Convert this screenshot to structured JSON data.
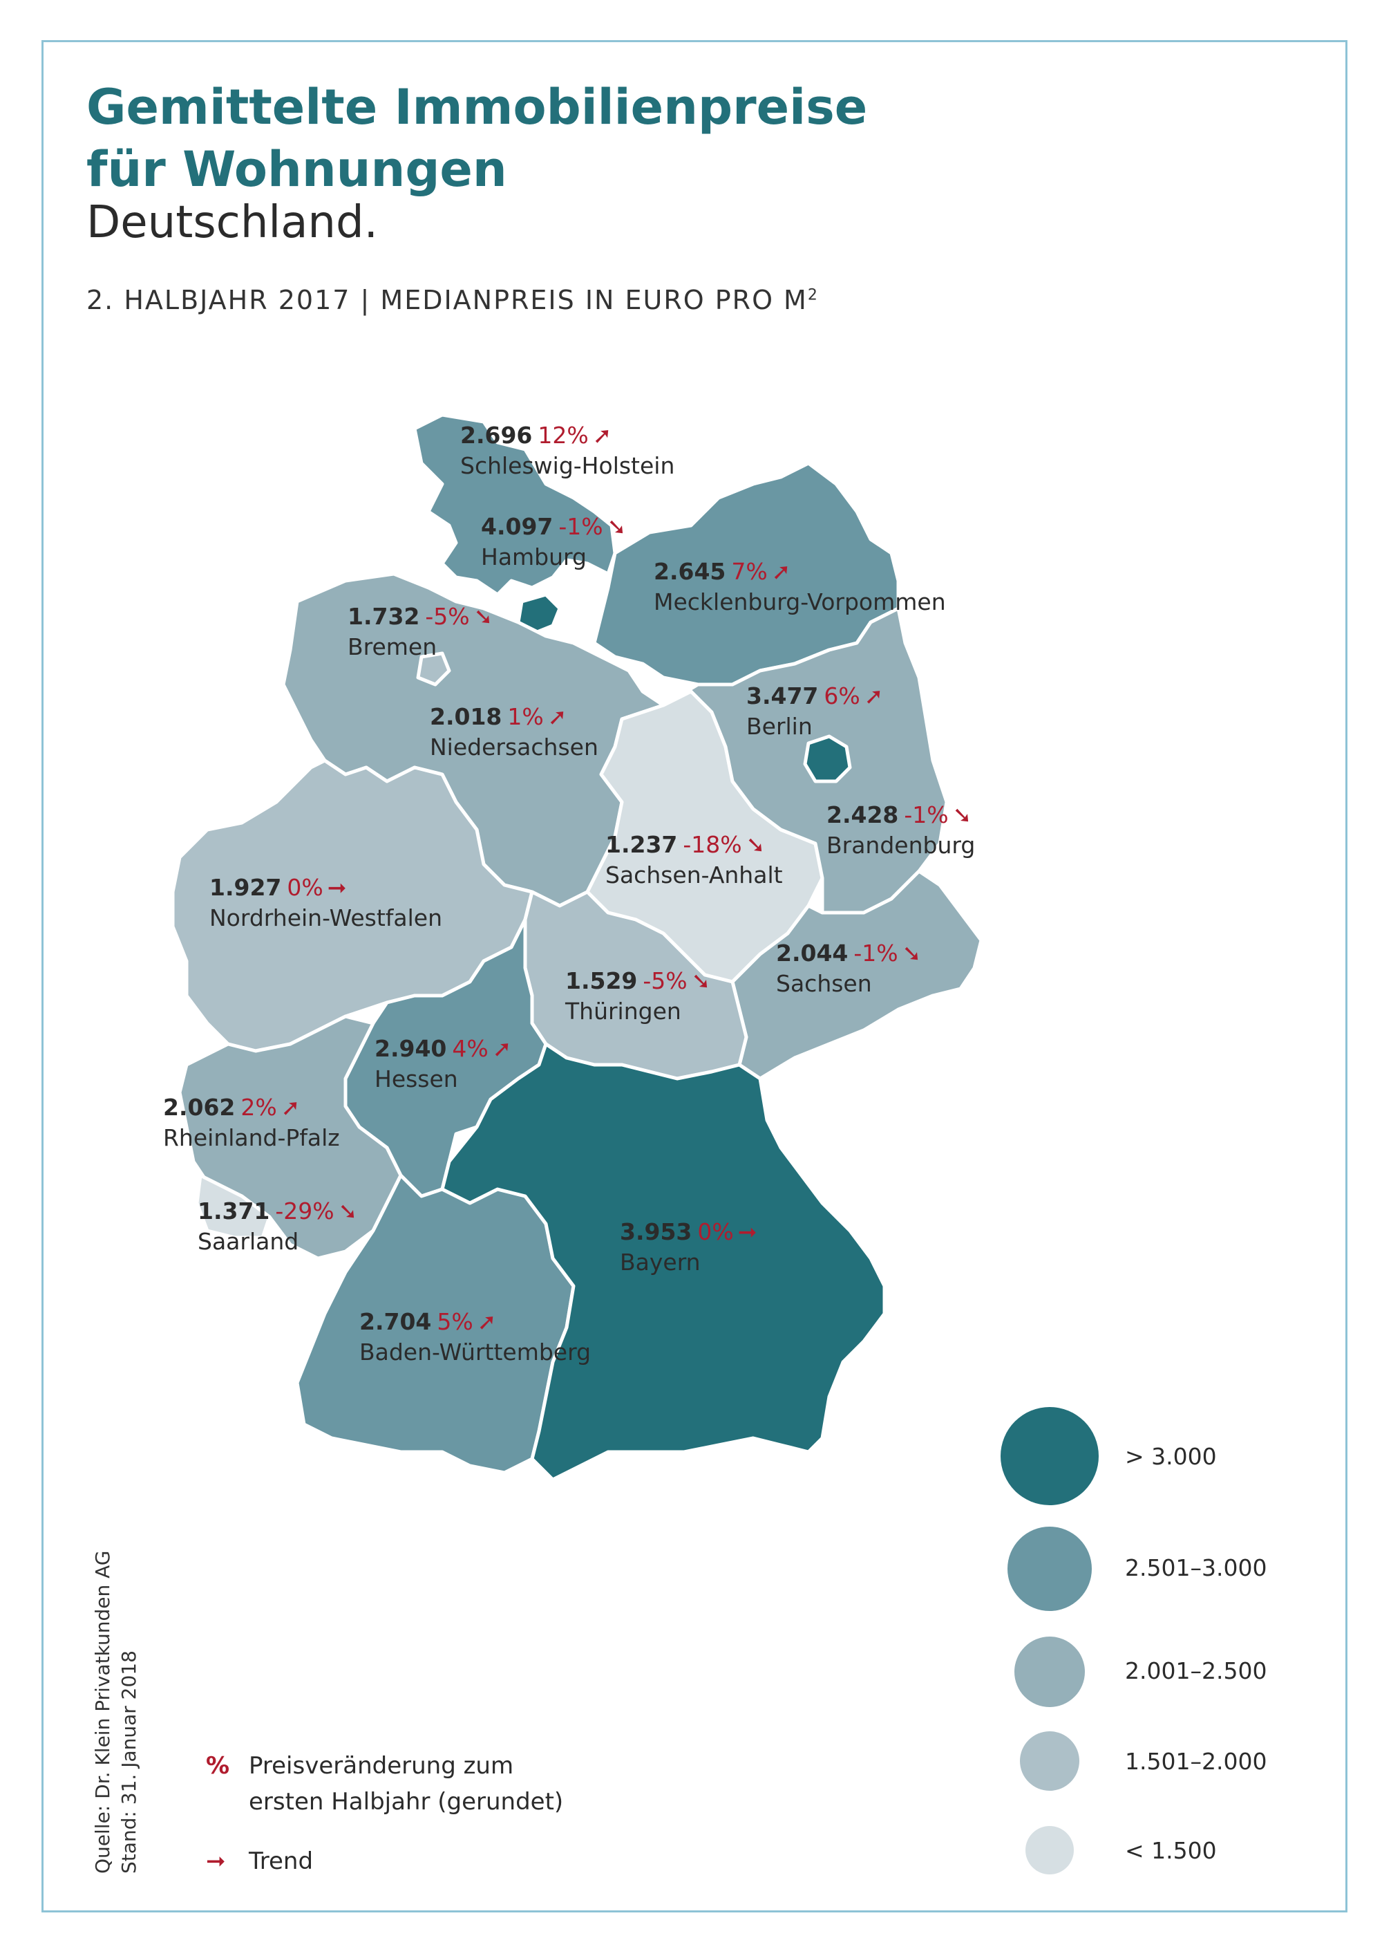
{
  "header": {
    "title_line1": "Gemittelte Immobilienpreise",
    "title_line2": "für Wohnungen",
    "subtitle": "Deutschland.",
    "period": "2. HALBJAHR 2017 | MEDIANPREIS IN EURO PRO M",
    "period_sup": "2"
  },
  "colors": {
    "gt3000": "#23707a",
    "r2501_3000": "#6a97a3",
    "r2001_2500": "#95b0b9",
    "r1501_2000": "#adc0c8",
    "lt1500": "#d6dfe3",
    "accent": "#b01c2e",
    "border": "#ffffff"
  },
  "states": [
    {
      "id": "sh",
      "value": "2.696",
      "change": "12%",
      "trend": "up",
      "name": "Schleswig-Holstein",
      "class": "r2501_3000"
    },
    {
      "id": "hh",
      "value": "4.097",
      "change": "-1%",
      "trend": "down",
      "name": "Hamburg",
      "class": "gt3000"
    },
    {
      "id": "mv",
      "value": "2.645",
      "change": "7%",
      "trend": "up",
      "name": "Mecklenburg-Vorpommen",
      "class": "r2501_3000"
    },
    {
      "id": "hb",
      "value": "1.732",
      "change": "-5%",
      "trend": "down",
      "name": "Bremen",
      "class": "r1501_2000"
    },
    {
      "id": "be",
      "value": "3.477",
      "change": "6%",
      "trend": "up",
      "name": "Berlin",
      "class": "gt3000"
    },
    {
      "id": "ni",
      "value": "2.018",
      "change": "1%",
      "trend": "up",
      "name": "Niedersachsen",
      "class": "r2001_2500"
    },
    {
      "id": "bb",
      "value": "2.428",
      "change": "-1%",
      "trend": "down",
      "name": "Brandenburg",
      "class": "r2001_2500"
    },
    {
      "id": "st",
      "value": "1.237",
      "change": "-18%",
      "trend": "down",
      "name": "Sachsen-Anhalt",
      "class": "lt1500"
    },
    {
      "id": "nw",
      "value": "1.927",
      "change": "0%",
      "trend": "flat",
      "name": "Nordrhein-Westfalen",
      "class": "r1501_2000"
    },
    {
      "id": "sn",
      "value": "2.044",
      "change": "-1%",
      "trend": "down",
      "name": "Sachsen",
      "class": "r2001_2500"
    },
    {
      "id": "th",
      "value": "1.529",
      "change": "-5%",
      "trend": "down",
      "name": "Thüringen",
      "class": "r1501_2000"
    },
    {
      "id": "he",
      "value": "2.940",
      "change": "4%",
      "trend": "up",
      "name": "Hessen",
      "class": "r2501_3000"
    },
    {
      "id": "rp",
      "value": "2.062",
      "change": "2%",
      "trend": "up",
      "name": "Rheinland-Pfalz",
      "class": "r2001_2500"
    },
    {
      "id": "sl",
      "value": "1.371",
      "change": "-29%",
      "trend": "down",
      "name": "Saarland",
      "class": "lt1500"
    },
    {
      "id": "by",
      "value": "3.953",
      "change": "0%",
      "trend": "flat",
      "name": "Bayern",
      "class": "gt3000"
    },
    {
      "id": "bw",
      "value": "2.704",
      "change": "5%",
      "trend": "up",
      "name": "Baden-Württemberg",
      "class": "r2501_3000"
    }
  ],
  "legend": [
    {
      "label": "> 3.000",
      "class": "gt3000"
    },
    {
      "label": "2.501–3.000",
      "class": "r2501_3000"
    },
    {
      "label": "2.001–2.500",
      "class": "r2001_2500"
    },
    {
      "label": "1.501–2.000",
      "class": "r1501_2000"
    },
    {
      "label": "< 1.500",
      "class": "lt1500"
    }
  ],
  "notes": {
    "pct_symbol": "%",
    "pct_line1": "Preisveränderung zum",
    "pct_line2": "ersten Halbjahr (gerundet)",
    "trend_label": "Trend"
  },
  "source": {
    "line1": "Quelle: Dr. Klein Privatkunden AG",
    "line2": "Stand: 31. Januar 2018"
  }
}
